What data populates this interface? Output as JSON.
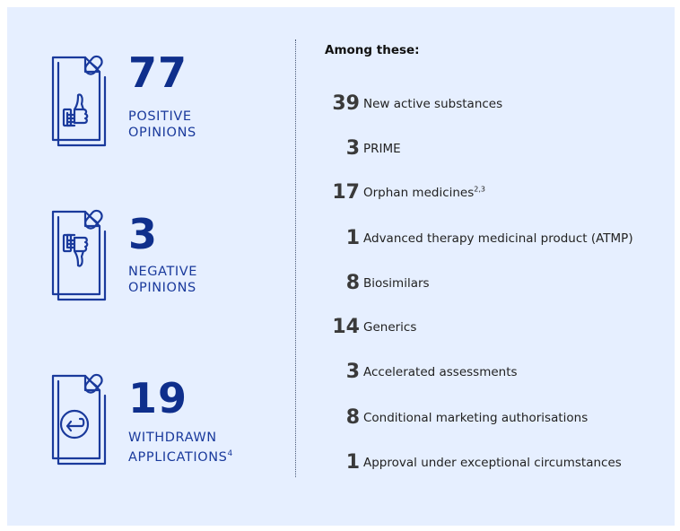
{
  "stats": [
    {
      "number": "77",
      "line1": "POSITIVE",
      "line2": "OPINIONS",
      "sup": "",
      "icon": "thumbs-up-document-icon"
    },
    {
      "number": "3",
      "line1": "NEGATIVE",
      "line2": "OPINIONS",
      "sup": "",
      "icon": "thumbs-down-document-icon"
    },
    {
      "number": "19",
      "line1": "WITHDRAWN",
      "line2": "APPLICATIONS",
      "sup": "4",
      "icon": "withdraw-document-icon"
    }
  ],
  "breakdown": {
    "heading": "Among these:",
    "items": [
      {
        "number": "39",
        "label": "New active substances",
        "sup": ""
      },
      {
        "number": "3",
        "label": "PRIME",
        "sup": ""
      },
      {
        "number": "17",
        "label": "Orphan medicines",
        "sup": "2,3"
      },
      {
        "number": "1",
        "label": "Advanced therapy medicinal product (ATMP)",
        "sup": ""
      },
      {
        "number": "8",
        "label": "Biosimilars",
        "sup": ""
      },
      {
        "number": "14",
        "label": "Generics",
        "sup": ""
      },
      {
        "number": "3",
        "label": "Accelerated assessments",
        "sup": ""
      },
      {
        "number": "8",
        "label": "Conditional marketing authorisations",
        "sup": ""
      },
      {
        "number": "1",
        "label": "Approval under exceptional circumstances",
        "sup": ""
      }
    ]
  },
  "colors": {
    "panel_bg": "#e6efff",
    "accent": "#0f2f8c",
    "label": "#1a3a9c"
  }
}
